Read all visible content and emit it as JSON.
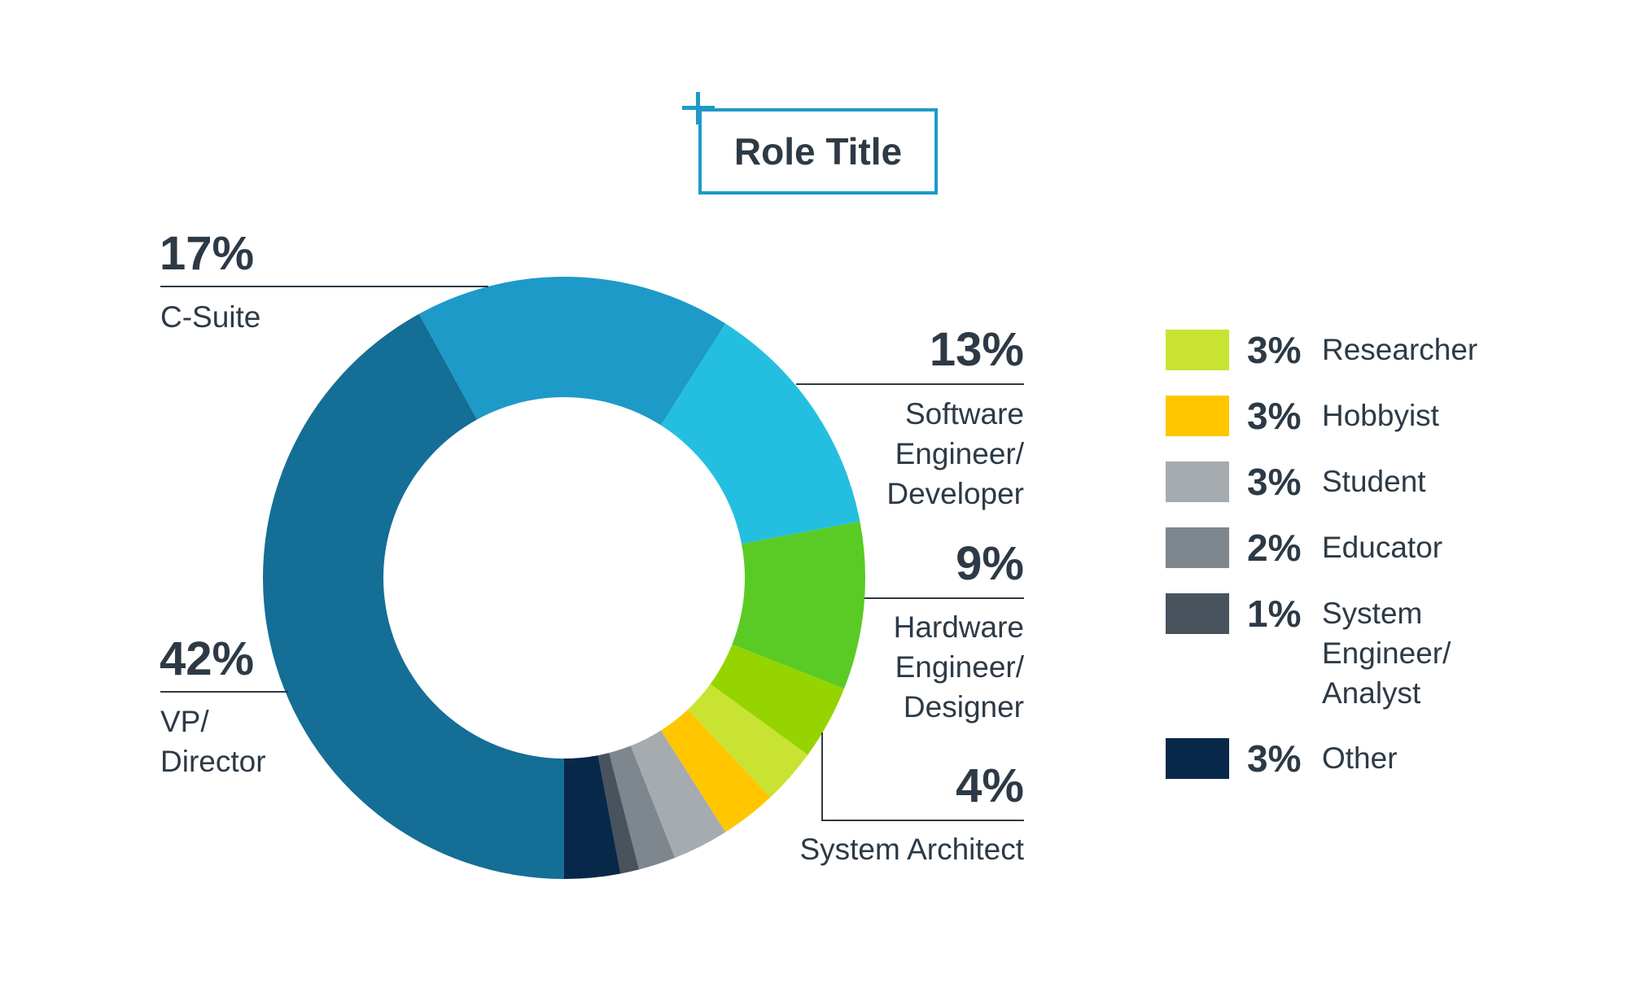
{
  "chart_data": {
    "type": "pie",
    "title": "Role Title",
    "donut": true,
    "slices": [
      {
        "label": "VP/ Director",
        "value": 42,
        "display": "42%",
        "color": "#146e96"
      },
      {
        "label": "C-Suite",
        "value": 17,
        "display": "17%",
        "color": "#1e9ac8"
      },
      {
        "label": "Software Engineer/ Developer",
        "value": 13,
        "display": "13%",
        "color": "#24bfe0"
      },
      {
        "label": "Hardware Engineer/ Designer",
        "value": 9,
        "display": "9%",
        "color": "#5acb24"
      },
      {
        "label": "System Architect",
        "value": 4,
        "display": "4%",
        "color": "#96d400"
      },
      {
        "label": "Researcher",
        "value": 3,
        "display": "3%",
        "color": "#c8e332"
      },
      {
        "label": "Hobbyist",
        "value": 3,
        "display": "3%",
        "color": "#ffc600"
      },
      {
        "label": "Student",
        "value": 3,
        "display": "3%",
        "color": "#a6abb0"
      },
      {
        "label": "Educator",
        "value": 2,
        "display": "2%",
        "color": "#7e868e"
      },
      {
        "label": "System Engineer/ Analyst",
        "value": 1,
        "display": "1%",
        "color": "#48535e"
      },
      {
        "label": "Other",
        "value": 3,
        "display": "3%",
        "color": "#08284a"
      }
    ]
  },
  "callouts": {
    "csuite": {
      "pct": "17%",
      "label": "C-Suite"
    },
    "vp": {
      "pct": "42%",
      "label_line1": "VP/",
      "label_line2": "Director"
    },
    "software": {
      "pct": "13%",
      "label_line1": "Software",
      "label_line2": "Engineer/",
      "label_line3": "Developer"
    },
    "hardware": {
      "pct": "9%",
      "label_line1": "Hardware",
      "label_line2": "Engineer/",
      "label_line3": "Designer"
    },
    "architect": {
      "pct": "4%",
      "label": "System Architect"
    }
  },
  "legend": [
    {
      "pct": "3%",
      "label": "Researcher",
      "color": "#c8e332"
    },
    {
      "pct": "3%",
      "label": "Hobbyist",
      "color": "#ffc600"
    },
    {
      "pct": "3%",
      "label": "Student",
      "color": "#a6abb0"
    },
    {
      "pct": "2%",
      "label": "Educator",
      "color": "#7e868e"
    },
    {
      "pct": "1%",
      "label_line1": "System",
      "label_line2": "Engineer/",
      "label_line3": "Analyst",
      "color": "#48535e"
    },
    {
      "pct": "3%",
      "label": "Other",
      "color": "#08284a"
    }
  ]
}
